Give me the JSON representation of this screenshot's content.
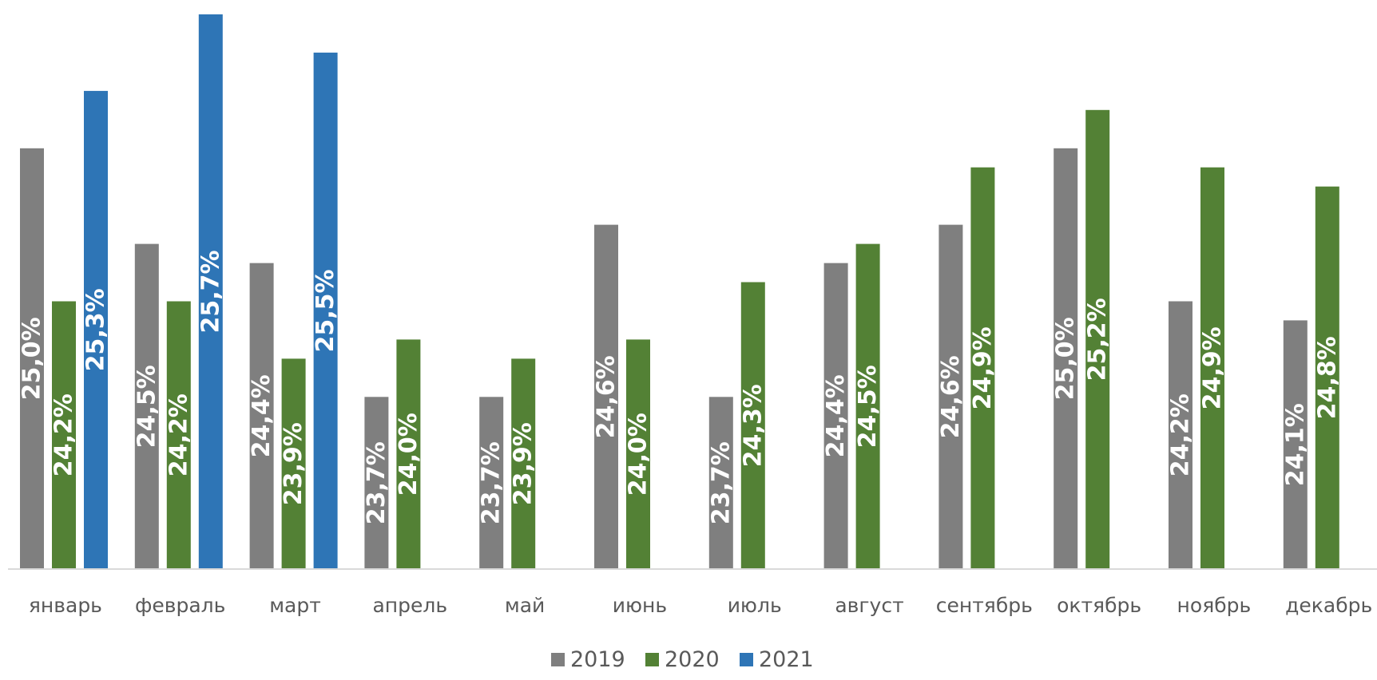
{
  "chart_data": {
    "type": "bar",
    "title": "",
    "xlabel": "",
    "ylabel": "",
    "categories": [
      "январь",
      "февраль",
      "март",
      "апрель",
      "май",
      "июнь",
      "июль",
      "август",
      "сентябрь",
      "октябрь",
      "ноябрь",
      "декабрь"
    ],
    "series": [
      {
        "name": "2019",
        "color": "#7f7f7f",
        "values": [
          25.0,
          24.5,
          24.4,
          23.7,
          23.7,
          24.6,
          23.7,
          24.4,
          24.6,
          25.0,
          24.2,
          24.1
        ],
        "labels": [
          "25,0%",
          "24,5%",
          "24,4%",
          "23,7%",
          "23,7%",
          "24,6%",
          "23,7%",
          "24,4%",
          "24,6%",
          "25,0%",
          "24,2%",
          "24,1%"
        ]
      },
      {
        "name": "2020",
        "color": "#538135",
        "values": [
          24.2,
          24.2,
          23.9,
          24.0,
          23.9,
          24.0,
          24.3,
          24.5,
          24.9,
          25.2,
          24.9,
          24.8
        ],
        "labels": [
          "24,2%",
          "24,2%",
          "23,9%",
          "24,0%",
          "23,9%",
          "24,0%",
          "24,3%",
          "24,5%",
          "24,9%",
          "25,2%",
          "24,9%",
          "24,8%"
        ]
      },
      {
        "name": "2021",
        "color": "#2e75b6",
        "values": [
          25.3,
          25.7,
          25.5,
          null,
          null,
          null,
          null,
          null,
          null,
          null,
          null,
          null
        ],
        "labels": [
          "25,3%",
          "25,7%",
          "25,5%",
          "",
          "",
          "",
          "",
          "",
          "",
          "",
          "",
          ""
        ]
      }
    ],
    "ylim": [
      22.8,
      25.7
    ],
    "grid": false,
    "legend": "bottom"
  }
}
